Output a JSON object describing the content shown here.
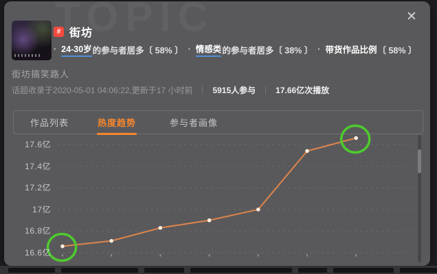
{
  "dialog": {
    "watermark": "TOPIC",
    "close_glyph": "✕",
    "topic": {
      "badge": "#",
      "title": "街坊",
      "bullet": "·",
      "highlights": [
        {
          "term": "24-30岁",
          "rest": "的参与者居多〔 58% 〕",
          "underlined": true
        },
        {
          "term": "情感类",
          "rest": "的参与者居多〔 38% 〕",
          "underlined": true
        },
        {
          "term": "带货作品比例",
          "rest": "〔 58% 〕",
          "underlined": false
        }
      ],
      "description": "街坊搞笑路人",
      "meta": {
        "collected": "话题收录于2020-05-01 04:06:22,更新于17 小时前",
        "participants": "5915人参与",
        "plays": "17.66亿次播放"
      }
    },
    "tabs": [
      {
        "label": "作品列表",
        "active": false
      },
      {
        "label": "热度趋势",
        "active": true
      },
      {
        "label": "参与者画像",
        "active": false
      }
    ]
  },
  "chart_data": {
    "type": "line",
    "title": "热度趋势",
    "unit": "亿",
    "values": [
      16.66,
      16.71,
      16.83,
      16.9,
      17.0,
      17.54,
      17.66
    ],
    "ylim": [
      16.6,
      17.6
    ],
    "y_tick_labels": [
      "17.6亿",
      "17.4亿",
      "17.2亿",
      "17亿",
      "16.8亿",
      "16.6亿"
    ],
    "y_tick_values": [
      17.6,
      17.4,
      17.2,
      17.0,
      16.8,
      16.6
    ],
    "x_axis": {
      "labels_visible": false,
      "tick_count": 7
    },
    "grid": "dashed-horizontal",
    "legend": "none",
    "line_color": "#e0854a",
    "point_color": "#ffeedd",
    "annotations": [
      {
        "shape": "circle",
        "point_index": 0,
        "color": "#4ecb2d"
      },
      {
        "shape": "circle",
        "point_index": 6,
        "color": "#4ecb2d"
      }
    ]
  },
  "colors": {
    "dialog_bg": "#59595c",
    "accent_orange": "#f8872c",
    "badge_red": "#f54a3f",
    "highlight_underline_blue": "#4e8fd8",
    "annotation_green": "#4ecb2d",
    "chart_line": "#e0854a"
  }
}
